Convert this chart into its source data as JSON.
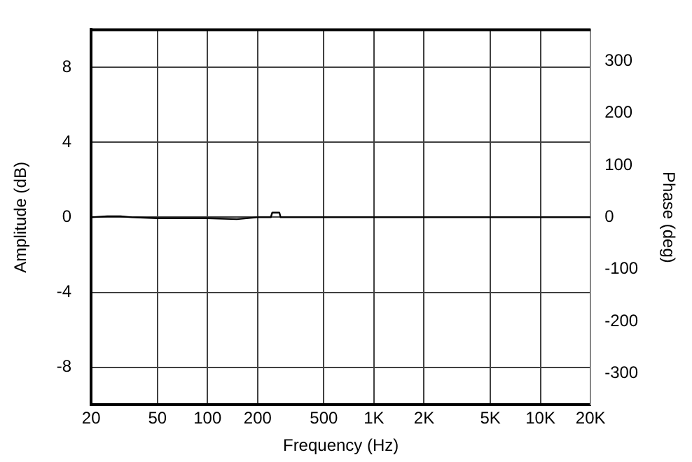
{
  "chart_data": {
    "type": "line",
    "xlabel": "Frequency (Hz)",
    "ylabel": "Amplitude (dB)",
    "y2label": "Phase (deg)",
    "x": [
      20,
      25,
      30,
      35,
      50,
      100,
      150,
      200,
      240,
      245,
      270,
      275,
      500,
      1000,
      5000,
      20000
    ],
    "series": [
      {
        "color": "#000000",
        "values": [
          0,
          0.05,
          0.05,
          0,
          -0.05,
          -0.05,
          -0.1,
          0,
          0,
          0.25,
          0.25,
          0,
          0,
          0,
          0,
          0
        ]
      }
    ],
    "log": "x",
    "xlim": [
      20,
      20000
    ],
    "xticks": [
      20,
      50,
      100,
      200,
      500,
      {
        "value": 1000,
        "label": "1K"
      },
      {
        "value": 2000,
        "label": "2K"
      },
      {
        "value": 5000,
        "label": "5K"
      },
      {
        "value": 10000,
        "label": "10K"
      },
      {
        "value": 20000,
        "label": "20K"
      }
    ],
    "ylim": [
      -10,
      10
    ],
    "yticks": [
      -8,
      -4,
      0,
      4,
      8
    ],
    "y2lim": [
      -360,
      360
    ],
    "y2ticks": [
      -300,
      -200,
      -100,
      0,
      100,
      200,
      300
    ],
    "grid": true,
    "legend": false,
    "marker": "none",
    "line_style": "solid"
  }
}
